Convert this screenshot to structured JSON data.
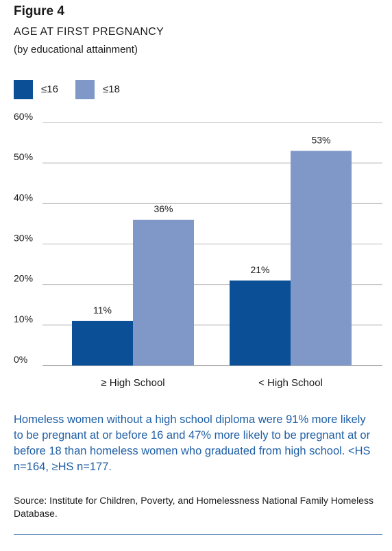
{
  "figure": {
    "label": "Figure 4",
    "title": "AGE AT FIRST PREGNANCY",
    "subtitle": "(by educational attainment)"
  },
  "legend": [
    {
      "label": "≤16",
      "color": "#0b4f96"
    },
    {
      "label": "≤18",
      "color": "#7f98c8"
    }
  ],
  "chart_data": {
    "type": "bar",
    "categories": [
      "≥ High School",
      "< High School"
    ],
    "series": [
      {
        "name": "≤16",
        "values": [
          11,
          21
        ],
        "labels": [
          "11%",
          "21%"
        ],
        "color": "#0b4f96"
      },
      {
        "name": "≤18",
        "values": [
          36,
          53
        ],
        "labels": [
          "36%",
          "53%"
        ],
        "color": "#7f98c8"
      }
    ],
    "ylim": [
      0,
      60
    ],
    "yticks": [
      0,
      10,
      20,
      30,
      40,
      50,
      60
    ],
    "ytick_labels": [
      "0%",
      "10%",
      "20%",
      "30%",
      "40%",
      "50%",
      "60%"
    ],
    "grid": true,
    "legend_position": "top-left"
  },
  "caption": "Homeless women without a high school diploma were 91% more likely to be pregnant at or before 16 and 47% more likely to be pregnant at or before 18 than homeless women who graduated from high school. <HS n=164, ≥HS n=177.",
  "source": "Source: Institute for Children, Poverty, and Homelessness National Family Homeless Database."
}
